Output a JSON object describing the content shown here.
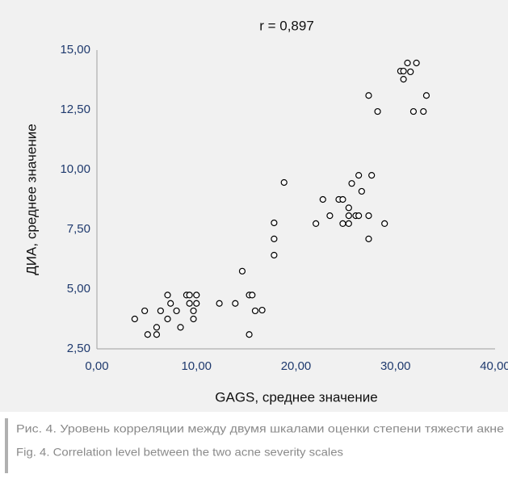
{
  "chart_data": {
    "type": "scatter",
    "title": "r = 0,897",
    "xlabel": "GAGS, среднее значение",
    "ylabel": "ДИА, среднее значение",
    "color": "#000000",
    "xlim": [
      0,
      40
    ],
    "ylim": [
      2.5,
      15
    ],
    "xticks": [
      {
        "value": 0,
        "label": "0,00"
      },
      {
        "value": 10,
        "label": "10,00"
      },
      {
        "value": 20,
        "label": "20,00"
      },
      {
        "value": 30,
        "label": "30,00"
      },
      {
        "value": 40,
        "label": "40,00"
      }
    ],
    "yticks": [
      {
        "value": 2.5,
        "label": "2,50"
      },
      {
        "value": 5,
        "label": "5,00"
      },
      {
        "value": 7.5,
        "label": "7,50"
      },
      {
        "value": 10,
        "label": "10,00"
      },
      {
        "value": 12.5,
        "label": "12,50"
      },
      {
        "value": 15,
        "label": "15,00"
      }
    ],
    "x": [
      3.8,
      4.8,
      5.1,
      6.0,
      6.0,
      6.4,
      7.1,
      7.1,
      7.4,
      8.0,
      8.4,
      9.0,
      9.3,
      9.3,
      9.7,
      9.7,
      10.0,
      10.0,
      12.3,
      13.9,
      14.6,
      15.3,
      15.6,
      15.3,
      15.9,
      16.6,
      17.8,
      17.8,
      17.8,
      18.8,
      22.0,
      22.7,
      23.4,
      24.3,
      24.7,
      24.7,
      25.3,
      25.3,
      25.3,
      25.6,
      26.0,
      26.3,
      26.3,
      26.6,
      27.3,
      27.3,
      27.3,
      27.6,
      28.2,
      28.9,
      30.5,
      30.8,
      30.8,
      31.2,
      31.5,
      31.8,
      32.1,
      32.8,
      33.1
    ],
    "values": [
      3.75,
      4.09,
      3.1,
      3.4,
      3.1,
      4.09,
      4.75,
      3.75,
      4.4,
      4.09,
      3.4,
      4.75,
      4.4,
      4.75,
      4.09,
      3.75,
      4.75,
      4.4,
      4.4,
      4.4,
      5.75,
      4.75,
      4.75,
      3.1,
      4.09,
      4.12,
      6.42,
      7.1,
      7.77,
      9.46,
      7.74,
      8.75,
      8.07,
      8.75,
      8.75,
      7.74,
      7.74,
      8.4,
      8.07,
      9.42,
      8.07,
      9.76,
      8.07,
      9.09,
      13.1,
      8.07,
      7.1,
      9.76,
      12.43,
      7.74,
      14.12,
      14.12,
      13.78,
      14.46,
      14.09,
      12.43,
      14.46,
      12.43,
      13.1
    ]
  },
  "caption": [
    "Рис. 4. Уровень корреляции между двумя шкалами оценки степени тяжести акне",
    "Fig. 4. Correlation level between the two acne severity scales"
  ]
}
